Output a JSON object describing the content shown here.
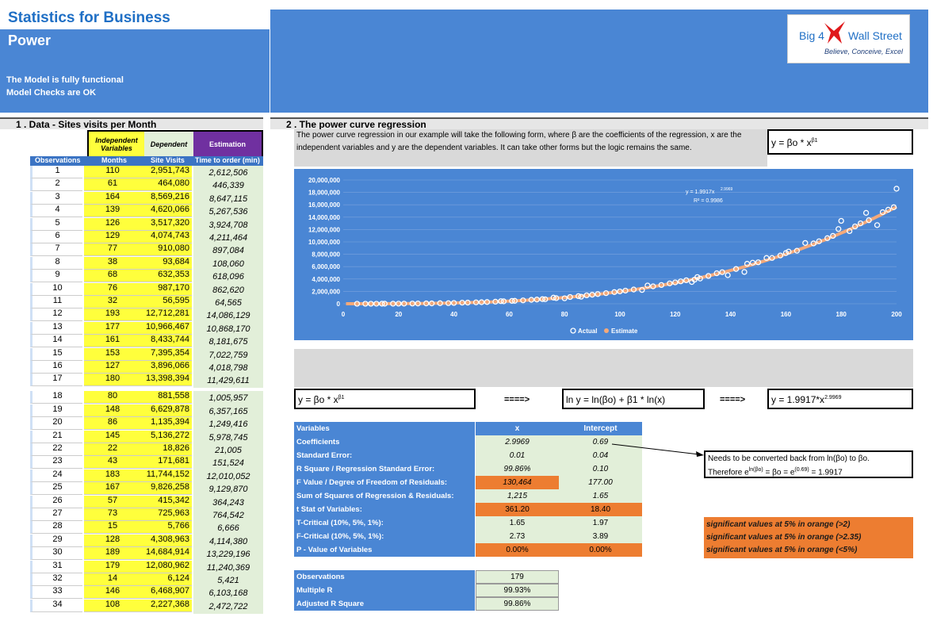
{
  "header": {
    "title": "Statistics for Business",
    "subtitle": "Power",
    "status1": "The Model is fully functional",
    "status2": "Model Checks are OK",
    "logo_left": "Big 4",
    "logo_right": "Wall Street",
    "logo_tagline": "Believe, Conceive, Excel"
  },
  "section1": {
    "title": "1 . Data - Sites visits per Month",
    "hdr_independent": "Independent Variables",
    "hdr_dependent": "Dependent",
    "hdr_estimation": "Estimation",
    "col_obs": "Observations",
    "col_months": "Months",
    "col_visits": "Site Visits",
    "col_time": "Time to order (min)",
    "rows": [
      {
        "obs": "1",
        "m": "110",
        "v": "2,951,743",
        "e": "2,612,506"
      },
      {
        "obs": "2",
        "m": "61",
        "v": "464,080",
        "e": "446,339"
      },
      {
        "obs": "3",
        "m": "164",
        "v": "8,569,216",
        "e": "8,647,115"
      },
      {
        "obs": "4",
        "m": "139",
        "v": "4,620,066",
        "e": "5,267,536"
      },
      {
        "obs": "5",
        "m": "126",
        "v": "3,517,320",
        "e": "3,924,708"
      },
      {
        "obs": "6",
        "m": "129",
        "v": "4,074,743",
        "e": "4,211,464"
      },
      {
        "obs": "7",
        "m": "77",
        "v": "910,080",
        "e": "897,084"
      },
      {
        "obs": "8",
        "m": "38",
        "v": "93,684",
        "e": "108,060"
      },
      {
        "obs": "9",
        "m": "68",
        "v": "632,353",
        "e": "618,096"
      },
      {
        "obs": "10",
        "m": "76",
        "v": "987,170",
        "e": "862,620"
      },
      {
        "obs": "11",
        "m": "32",
        "v": "56,595",
        "e": "64,565"
      },
      {
        "obs": "12",
        "m": "193",
        "v": "12,712,281",
        "e": "14,086,129"
      },
      {
        "obs": "13",
        "m": "177",
        "v": "10,966,467",
        "e": "10,868,170"
      },
      {
        "obs": "14",
        "m": "161",
        "v": "8,433,744",
        "e": "8,181,675"
      },
      {
        "obs": "15",
        "m": "153",
        "v": "7,395,354",
        "e": "7,022,759"
      },
      {
        "obs": "16",
        "m": "127",
        "v": "3,896,066",
        "e": "4,018,798"
      },
      {
        "obs": "17",
        "m": "180",
        "v": "13,398,394",
        "e": "11,429,611"
      },
      {
        "obs": "18",
        "m": "80",
        "v": "881,558",
        "e": "1,005,957"
      },
      {
        "obs": "19",
        "m": "148",
        "v": "6,629,878",
        "e": "6,357,165"
      },
      {
        "obs": "20",
        "m": "86",
        "v": "1,135,394",
        "e": "1,249,416"
      },
      {
        "obs": "21",
        "m": "145",
        "v": "5,136,272",
        "e": "5,978,745"
      },
      {
        "obs": "22",
        "m": "22",
        "v": "18,826",
        "e": "21,005"
      },
      {
        "obs": "23",
        "m": "43",
        "v": "171,681",
        "e": "151,524"
      },
      {
        "obs": "24",
        "m": "183",
        "v": "11,744,152",
        "e": "12,010,052"
      },
      {
        "obs": "25",
        "m": "167",
        "v": "9,826,258",
        "e": "9,129,870"
      },
      {
        "obs": "26",
        "m": "57",
        "v": "415,342",
        "e": "364,243"
      },
      {
        "obs": "27",
        "m": "73",
        "v": "725,963",
        "e": "764,542"
      },
      {
        "obs": "28",
        "m": "15",
        "v": "5,766",
        "e": "6,666"
      },
      {
        "obs": "29",
        "m": "128",
        "v": "4,308,963",
        "e": "4,114,380"
      },
      {
        "obs": "30",
        "m": "189",
        "v": "14,684,914",
        "e": "13,229,196"
      },
      {
        "obs": "31",
        "m": "179",
        "v": "12,080,962",
        "e": "11,240,369"
      },
      {
        "obs": "32",
        "m": "14",
        "v": "6,124",
        "e": "5,421"
      },
      {
        "obs": "33",
        "m": "146",
        "v": "6,468,907",
        "e": "6,103,168"
      },
      {
        "obs": "34",
        "m": "108",
        "v": "2,227,368",
        "e": "2,472,722"
      }
    ]
  },
  "section2": {
    "title": "2 . The power curve regression",
    "desc": "The power curve regression in our example will take the following form, where β are the coefficients of the regression, x are the independent variables and y are the dependent variables. It can take other forms but the logic remains the same.",
    "formula_base": "y = βo * x",
    "formula_sup": "β1",
    "ln_formula": "ln y = ln(βo) + β1 * ln(x)",
    "arrow": "====>",
    "fit_base": "y = 1.9917*x",
    "fit_sup": "2.9969"
  },
  "chart_data": {
    "type": "scatter",
    "xlim": [
      0,
      200
    ],
    "ylim": [
      0,
      20000000
    ],
    "xticks": [
      "0",
      "20",
      "40",
      "60",
      "80",
      "100",
      "120",
      "140",
      "160",
      "180",
      "200"
    ],
    "yticks": [
      "0",
      "2,000,000",
      "4,000,000",
      "6,000,000",
      "8,000,000",
      "10,000,000",
      "12,000,000",
      "14,000,000",
      "16,000,000",
      "18,000,000",
      "20,000,000"
    ],
    "equation": "y = 1.9917x",
    "equation_exp": "2.9969",
    "r2": "R² = 0.9986",
    "legend": [
      "Actual",
      "Estimate"
    ],
    "series": [
      {
        "name": "Actual",
        "x": [
          110,
          61,
          164,
          139,
          126,
          129,
          77,
          38,
          68,
          76,
          32,
          193,
          177,
          161,
          153,
          127,
          180,
          80,
          148,
          86,
          145,
          22,
          43,
          183,
          167,
          57,
          73,
          15,
          128,
          189,
          179,
          14,
          146,
          108,
          5,
          8,
          10,
          12,
          18,
          20,
          25,
          27,
          30,
          35,
          40,
          45,
          48,
          50,
          52,
          55,
          58,
          62,
          65,
          70,
          72,
          82,
          85,
          88,
          90,
          92,
          95,
          98,
          100,
          102,
          105,
          112,
          115,
          118,
          120,
          122,
          124,
          132,
          135,
          137,
          142,
          150,
          155,
          158,
          160,
          170,
          172,
          175,
          185,
          187,
          190,
          195,
          197,
          199,
          200
        ],
        "y": [
          2951743,
          464080,
          8569216,
          4620066,
          3517320,
          4074743,
          910080,
          93684,
          632353,
          987170,
          56595,
          12712281,
          10966467,
          8433744,
          7395354,
          3896066,
          13398394,
          881558,
          6629878,
          1135394,
          5136272,
          18826,
          171681,
          11744152,
          9826258,
          415342,
          725963,
          5766,
          4308963,
          14684914,
          12080962,
          6124,
          6468907,
          2227368,
          300,
          1000,
          2000,
          3500,
          11000,
          16000,
          31000,
          39000,
          54000,
          85000,
          128000,
          182000,
          221000,
          249000,
          281000,
          333000,
          390000,
          475000,
          547000,
          684000,
          746000,
          1090000,
          1230000,
          1360000,
          1450000,
          1560000,
          1710000,
          1880000,
          1990000,
          2120000,
          2300000,
          2810000,
          3030000,
          3290000,
          3450000,
          3620000,
          3800000,
          4500000,
          4930000,
          5100000,
          5620000,
          6700000,
          7400000,
          7800000,
          8200000,
          9750000,
          10100000,
          10600000,
          12500000,
          13000000,
          13500000,
          14800000,
          15200000,
          15600000,
          18600000
        ]
      },
      {
        "name": "Estimate",
        "curve_a": 1.9917,
        "curve_b": 2.9969
      }
    ]
  },
  "regression": {
    "col_variables": "Variables",
    "col_x": "x",
    "col_intercept": "Intercept",
    "rows": [
      {
        "label": "Coefficients",
        "x": "2.9969",
        "i": "0.69"
      },
      {
        "label": "Standard Error:",
        "x": "0.01",
        "i": "0.04"
      },
      {
        "label": "R Square / Regression Standard Error:",
        "x": "99.86%",
        "i": "0.10"
      },
      {
        "label": "F Value / Degree of Freedom of Residuals:",
        "x": "130,464",
        "i": "177.00"
      },
      {
        "label": "Sum of Squares of Regression & Residuals:",
        "x": "1,215",
        "i": "1.65"
      },
      {
        "label": "t Stat of Variables:",
        "x": "361.20",
        "i": "18.40"
      },
      {
        "label": "T-Critical (10%, 5%, 1%):",
        "x": "1.65",
        "i": "1.97"
      },
      {
        "label": "F-Critical (10%, 5%, 1%):",
        "x": "2.73",
        "i": "3.89"
      },
      {
        "label": "P - Value of Variables",
        "x": "0.00%",
        "i": "0.00%"
      }
    ],
    "note_line1": "Needs to be converted back from ln(βo) to βo.",
    "note_line2_a": "Therefore e",
    "note_line2_sup1": "ln(βo)",
    "note_line2_b": " = βo = e",
    "note_line2_sup2": "(0.69)",
    "note_line2_c": " = 1.9917",
    "sig1": "significant values at 5% in orange (>2)",
    "sig2": "significant values at 5% in orange (>2.35)",
    "sig3": "significant values at 5% in orange (<5%)"
  },
  "stats": {
    "rows": [
      {
        "label": "Observations",
        "val": "179"
      },
      {
        "label": "Multiple R",
        "val": "99.93%"
      },
      {
        "label": "Adjusted R Square",
        "val": "99.86%"
      }
    ]
  },
  "colors": {
    "accent": "#4a86d4",
    "yellow": "#ffff3c",
    "green": "#e2efd9",
    "orange": "#ed7d31",
    "purple": "#7030a0"
  }
}
